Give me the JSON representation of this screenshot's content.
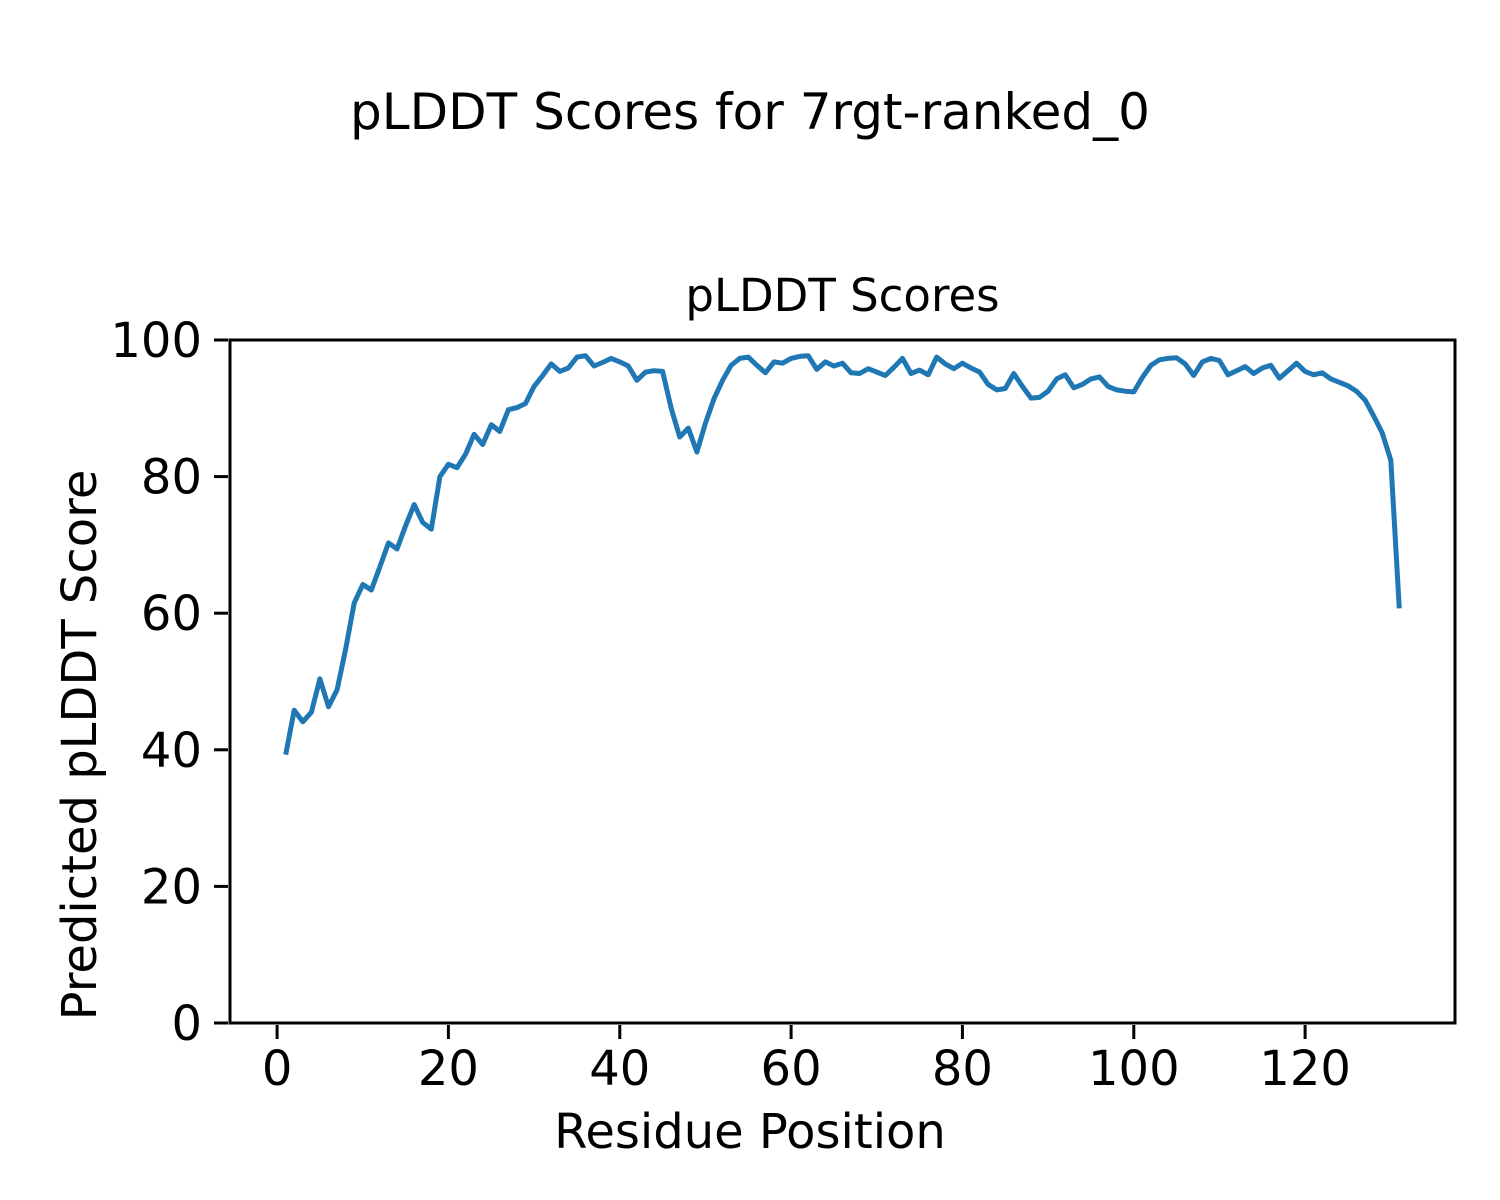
{
  "figure": {
    "suptitle": "pLDDT Scores for 7rgt-ranked_0",
    "background": "#ffffff",
    "text_color": "#000000",
    "spine_color": "#000000"
  },
  "chart_data": {
    "type": "line",
    "title": "pLDDT Scores",
    "xlabel": "Residue Position",
    "ylabel": "Predicted pLDDT Score",
    "line_color": "#1f77b4",
    "line_width": 5,
    "grid": false,
    "legend": "none",
    "xlim": [
      -5.5,
      137.5
    ],
    "ylim": [
      0,
      100
    ],
    "xticks": [
      0,
      20,
      40,
      60,
      80,
      100,
      120
    ],
    "yticks": [
      0,
      20,
      40,
      60,
      80,
      100
    ],
    "x_start": 1,
    "x_step": 1,
    "values": [
      39.3,
      45.8,
      44.1,
      45.5,
      50.4,
      46.3,
      48.8,
      54.7,
      61.5,
      64.2,
      63.4,
      66.8,
      70.3,
      69.4,
      72.8,
      75.9,
      73.3,
      72.3,
      80.0,
      81.8,
      81.3,
      83.3,
      86.2,
      84.7,
      87.6,
      86.6,
      89.8,
      90.1,
      90.7,
      93.2,
      94.8,
      96.5,
      95.4,
      95.9,
      97.5,
      97.7,
      96.2,
      96.7,
      97.3,
      96.8,
      96.2,
      94.1,
      95.3,
      95.5,
      95.4,
      90.0,
      85.8,
      87.1,
      83.6,
      87.8,
      91.4,
      94.1,
      96.3,
      97.3,
      97.5,
      96.3,
      95.2,
      96.8,
      96.6,
      97.3,
      97.6,
      97.7,
      95.7,
      96.8,
      96.2,
      96.6,
      95.2,
      95.1,
      95.8,
      95.3,
      94.8,
      96.0,
      97.3,
      95.1,
      95.6,
      94.9,
      97.5,
      96.5,
      95.8,
      96.6,
      95.9,
      95.3,
      93.5,
      92.7,
      92.9,
      95.1,
      93.2,
      91.5,
      91.6,
      92.5,
      94.3,
      94.9,
      93.0,
      93.5,
      94.3,
      94.6,
      93.2,
      92.7,
      92.5,
      92.4,
      94.5,
      96.3,
      97.1,
      97.3,
      97.4,
      96.5,
      94.8,
      96.8,
      97.3,
      97.0,
      94.9,
      95.5,
      96.1,
      95.1,
      95.9,
      96.3,
      94.4,
      95.5,
      96.6,
      95.4,
      94.9,
      95.2,
      94.3,
      93.8,
      93.3,
      92.5,
      91.2,
      88.9,
      86.4,
      82.4,
      60.7
    ]
  }
}
